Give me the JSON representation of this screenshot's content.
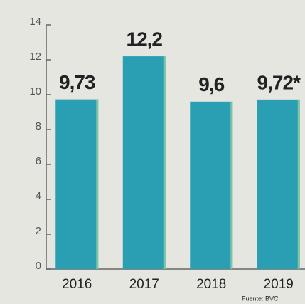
{
  "chart_data": {
    "type": "bar",
    "categories": [
      "2016",
      "2017",
      "2018",
      "2019"
    ],
    "values": [
      9.73,
      12.2,
      9.6,
      9.72
    ],
    "value_labels": [
      "9,73",
      "12,2",
      "9,6",
      "9,72*"
    ],
    "color": "#2a9fb3",
    "ylim": [
      0,
      14
    ],
    "yticks": [
      0,
      2,
      4,
      6,
      8,
      10,
      12,
      14
    ],
    "source": "Fuente: BVC"
  }
}
